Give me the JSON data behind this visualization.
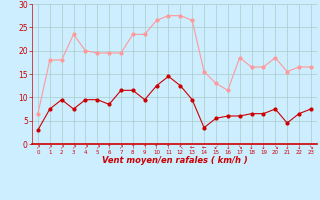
{
  "x": [
    0,
    1,
    2,
    3,
    4,
    5,
    6,
    7,
    8,
    9,
    10,
    11,
    12,
    13,
    14,
    15,
    16,
    17,
    18,
    19,
    20,
    21,
    22,
    23
  ],
  "vent_moyen": [
    3,
    7.5,
    9.5,
    7.5,
    9.5,
    9.5,
    8.5,
    11.5,
    11.5,
    9.5,
    12.5,
    14.5,
    12.5,
    9.5,
    3.5,
    5.5,
    6,
    6,
    6.5,
    6.5,
    7.5,
    4.5,
    6.5,
    7.5
  ],
  "rafales": [
    6.5,
    18,
    18,
    23.5,
    20,
    19.5,
    19.5,
    19.5,
    23.5,
    23.5,
    26.5,
    27.5,
    27.5,
    26.5,
    15.5,
    13,
    11.5,
    18.5,
    16.5,
    16.5,
    18.5,
    15.5,
    16.5,
    16.5
  ],
  "wind_arrows": [
    "↗",
    "↗",
    "↗",
    "↗",
    "↗",
    "↗",
    "↑",
    "↗",
    "↑",
    "↑",
    "↑",
    "↑",
    "↖",
    "←",
    "←",
    "↙",
    "↓",
    "↘",
    "↓",
    "↓",
    "↘",
    "↓",
    "↓",
    "↘"
  ],
  "color_moyen": "#cc0000",
  "color_rafales": "#ff9999",
  "bg_color": "#cceeff",
  "grid_color": "#aacccc",
  "xlabel": "Vent moyen/en rafales ( km/h )",
  "ylim": [
    0,
    30
  ],
  "yticks": [
    0,
    5,
    10,
    15,
    20,
    25,
    30
  ],
  "xlim": [
    -0.5,
    23.5
  ]
}
